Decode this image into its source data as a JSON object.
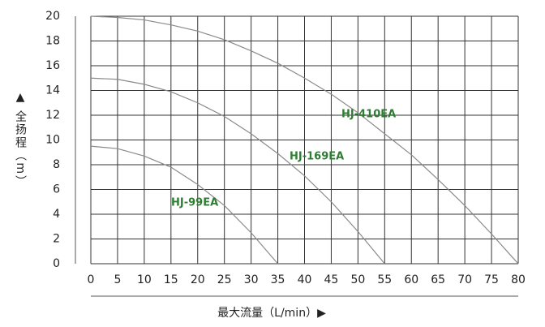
{
  "chart_data": {
    "type": "line",
    "xlabel": "最大流量（L/min）▶",
    "ylabel": "▲ 全扬程（m）",
    "xlim": [
      0,
      80
    ],
    "xticks": [
      0,
      5,
      10,
      15,
      20,
      25,
      30,
      35,
      40,
      45,
      50,
      55,
      60,
      65,
      70,
      75,
      80
    ],
    "ylim": [
      0,
      20
    ],
    "yticks": [
      0,
      2,
      4,
      6,
      8,
      10,
      12,
      14,
      16,
      18,
      20
    ],
    "grid": true,
    "series": [
      {
        "name": "HJ-410EA",
        "color": "#8a8a8a",
        "x": [
          0,
          5,
          10,
          15,
          20,
          25,
          30,
          35,
          40,
          45,
          50,
          55,
          60,
          65,
          70,
          75,
          80
        ],
        "values": [
          20,
          19.9,
          19.7,
          19.3,
          18.8,
          18.1,
          17.2,
          16.2,
          15,
          13.7,
          12.2,
          10.5,
          8.8,
          6.8,
          4.7,
          2.4,
          0
        ]
      },
      {
        "name": "HJ-169EA",
        "color": "#8a8a8a",
        "x": [
          0,
          5,
          10,
          15,
          20,
          25,
          30,
          35,
          40,
          45,
          50,
          55
        ],
        "values": [
          15,
          14.9,
          14.5,
          13.9,
          13.0,
          11.9,
          10.5,
          8.9,
          7.1,
          5.0,
          2.6,
          0
        ]
      },
      {
        "name": "HJ-99EA",
        "color": "#8a8a8a",
        "x": [
          0,
          5,
          10,
          15,
          20,
          25,
          30,
          35
        ],
        "values": [
          9.5,
          9.3,
          8.7,
          7.8,
          6.4,
          4.7,
          2.5,
          0
        ]
      }
    ]
  }
}
